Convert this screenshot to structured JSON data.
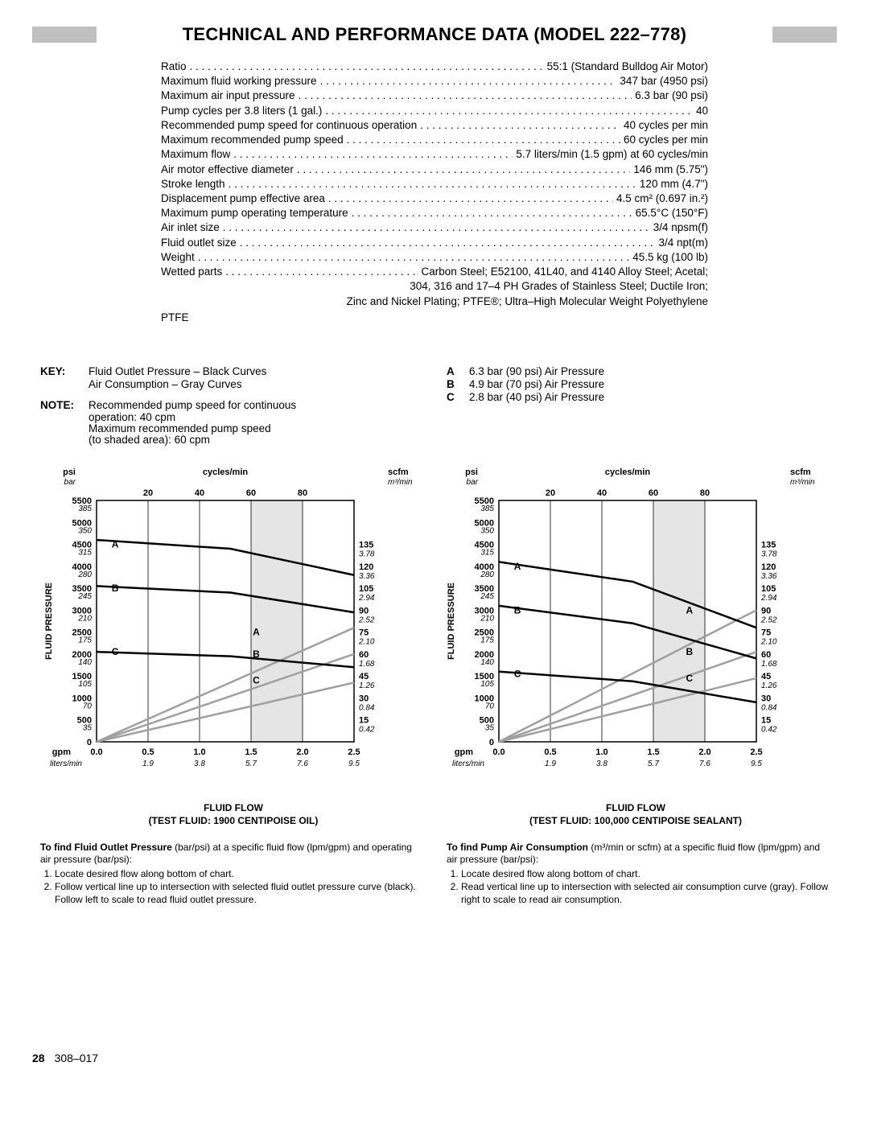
{
  "title": "TECHNICAL AND PERFORMANCE DATA (MODEL 222–778)",
  "specs": [
    {
      "label": "Ratio",
      "value": "55:1 (Standard Bulldog Air Motor)"
    },
    {
      "label": "Maximum fluid working pressure",
      "value": "347 bar (4950 psi)"
    },
    {
      "label": "Maximum air input pressure",
      "value": "6.3 bar (90 psi)"
    },
    {
      "label": "Pump cycles per 3.8 liters (1 gal.)",
      "value": "40"
    },
    {
      "label": "Recommended pump speed for continuous operation",
      "value": "40 cycles per min"
    },
    {
      "label": "Maximum recommended pump speed",
      "value": "60 cycles per min"
    },
    {
      "label": "Maximum flow",
      "value": "5.7 liters/min (1.5 gpm) at 60 cycles/min"
    },
    {
      "label": "Air motor effective diameter",
      "value": "146 mm (5.75\")"
    },
    {
      "label": "Stroke length",
      "value": "120 mm (4.7\")"
    },
    {
      "label": "Displacement pump effective area",
      "value": "4.5 cm² (0.697 in.²)"
    },
    {
      "label": "Maximum pump operating temperature",
      "value": "65.5°C (150°F)"
    },
    {
      "label": "Air inlet size",
      "value": "3/4 npsm(f)"
    },
    {
      "label": "Fluid outlet size",
      "value": "3/4 npt(m)"
    },
    {
      "label": "Weight",
      "value": "45.5 kg (100 lb)"
    },
    {
      "label": "Wetted parts",
      "value": "Carbon Steel; E52100, 41L40, and 4140 Alloy Steel; Acetal;"
    }
  ],
  "spec_continuations": [
    "304, 316 and 17–4 PH Grades of Stainless Steel; Ductile Iron;",
    "Zinc and Nickel Plating; PTFE®; Ultra–High Molecular Weight Polyethylene"
  ],
  "ptfe_line": "PTFE",
  "key_block": {
    "key_label": "KEY:",
    "key_lines": [
      "Fluid Outlet Pressure – Black Curves",
      "Air Consumption – Gray Curves"
    ],
    "note_label": "NOTE:",
    "note_lines": [
      "Recommended pump speed for continuous",
      "operation: 40 cpm",
      "Maximum recommended pump speed",
      "(to shaded area): 60 cpm"
    ],
    "abc": [
      {
        "k": "A",
        "v": "6.3 bar (90 psi) Air Pressure"
      },
      {
        "k": "B",
        "v": "4.9 bar (70 psi) Air Pressure"
      },
      {
        "k": "C",
        "v": "2.8 bar (40 psi) Air Pressure"
      }
    ]
  },
  "chart_common": {
    "psi_label": "psi",
    "bar_label": "bar",
    "cycles_label": "cycles/min",
    "scfm_label": "scfm",
    "m3min_label": "m³/min",
    "gpm_label": "gpm",
    "lpm_label": "liters/min",
    "y_axis_title": "FLUID PRESSURE",
    "y_ticks_psi": [
      "5500",
      "5000",
      "4500",
      "4000",
      "3500",
      "3000",
      "2500",
      "2000",
      "1500",
      "1000",
      "500",
      "0"
    ],
    "y_ticks_bar": [
      "385",
      "350",
      "315",
      "280",
      "245",
      "210",
      "175",
      "140",
      "105",
      "70",
      "35"
    ],
    "y2_ticks_scfm": [
      "135",
      "120",
      "105",
      "90",
      "75",
      "60",
      "45",
      "30",
      "15"
    ],
    "y2_ticks_m3": [
      "3.78",
      "3.36",
      "2.94",
      "2.52",
      "2.10",
      "1.68",
      "1.26",
      "0.84",
      "0.42"
    ],
    "x_top_ticks": [
      "20",
      "40",
      "60",
      "80"
    ],
    "x_gpm_ticks": [
      "0.0",
      "0.5",
      "1.0",
      "1.5",
      "2.0",
      "2.5"
    ],
    "x_lpm_ticks": [
      "1.9",
      "3.8",
      "5.7",
      "7.6",
      "9.5"
    ],
    "colors": {
      "black": "#000000",
      "gray": "#a0a0a0",
      "grid": "#000000",
      "shaded": "#e5e5e5"
    },
    "shaded_x_start": 1.5,
    "shaded_x_end": 2.0,
    "xlim": [
      0,
      2.5
    ],
    "ylim_psi": [
      0,
      5500
    ],
    "y2lim_scfm": [
      0,
      135
    ]
  },
  "chart1": {
    "caption1": "FLUID FLOW",
    "caption2": "(TEST FLUID: 1900 CENTIPOISE OIL)",
    "black_curves": {
      "A": [
        [
          0.0,
          4600
        ],
        [
          1.3,
          4400
        ],
        [
          2.5,
          3800
        ]
      ],
      "B": [
        [
          0.0,
          3550
        ],
        [
          1.3,
          3400
        ],
        [
          2.5,
          2950
        ]
      ],
      "C": [
        [
          0.0,
          2050
        ],
        [
          1.3,
          1950
        ],
        [
          2.5,
          1700
        ]
      ]
    },
    "gray_curves": {
      "A": [
        [
          0.0,
          0
        ],
        [
          2.5,
          2600
        ]
      ],
      "B": [
        [
          0.0,
          0
        ],
        [
          2.5,
          2000
        ]
      ],
      "C": [
        [
          0.0,
          0
        ],
        [
          2.5,
          1350
        ]
      ]
    },
    "black_labels": {
      "A": [
        0.18,
        4500
      ],
      "B": [
        0.18,
        3500
      ],
      "C": [
        0.18,
        2050
      ]
    },
    "gray_labels": {
      "A": [
        1.55,
        2500
      ],
      "B": [
        1.55,
        2000
      ],
      "C": [
        1.55,
        1400
      ]
    }
  },
  "chart2": {
    "caption1": "FLUID FLOW",
    "caption2": "(TEST FLUID: 100,000 CENTIPOISE SEALANT)",
    "black_curves": {
      "A": [
        [
          0.0,
          4100
        ],
        [
          1.3,
          3650
        ],
        [
          2.5,
          2600
        ]
      ],
      "B": [
        [
          0.0,
          3100
        ],
        [
          1.3,
          2700
        ],
        [
          2.5,
          1900
        ]
      ],
      "C": [
        [
          0.0,
          1600
        ],
        [
          1.3,
          1380
        ],
        [
          2.5,
          900
        ]
      ]
    },
    "gray_curves": {
      "A": [
        [
          0.0,
          0
        ],
        [
          2.5,
          3000
        ]
      ],
      "B": [
        [
          0.0,
          0
        ],
        [
          2.5,
          2050
        ]
      ],
      "C": [
        [
          0.0,
          0
        ],
        [
          2.5,
          1450
        ]
      ]
    },
    "black_labels": {
      "A": [
        0.18,
        4000
      ],
      "B": [
        0.18,
        3000
      ],
      "C": [
        0.18,
        1550
      ]
    },
    "gray_labels": {
      "A": [
        1.85,
        3000
      ],
      "B": [
        1.85,
        2050
      ],
      "C": [
        1.85,
        1450
      ]
    }
  },
  "instructions": {
    "left": {
      "lead_bold": "To find Fluid Outlet Pressure",
      "lead_rest": " (bar/psi) at a specific fluid flow (lpm/gpm) and operating air pressure (bar/psi):",
      "items": [
        "Locate desired flow along bottom of chart.",
        "Follow vertical line up to intersection with selected fluid outlet pressure curve (black). Follow left to scale to read fluid outlet pressure."
      ]
    },
    "right": {
      "lead_bold": "To find Pump Air Consumption",
      "lead_rest": " (m³/min or scfm) at a specific fluid flow (lpm/gpm) and air pressure (bar/psi):",
      "items": [
        "Locate desired flow along bottom of chart.",
        "Read vertical line up to intersection with selected air consumption curve (gray). Follow right to scale to read air consumption."
      ]
    }
  },
  "footer": {
    "page": "28",
    "doc": "308–017"
  }
}
